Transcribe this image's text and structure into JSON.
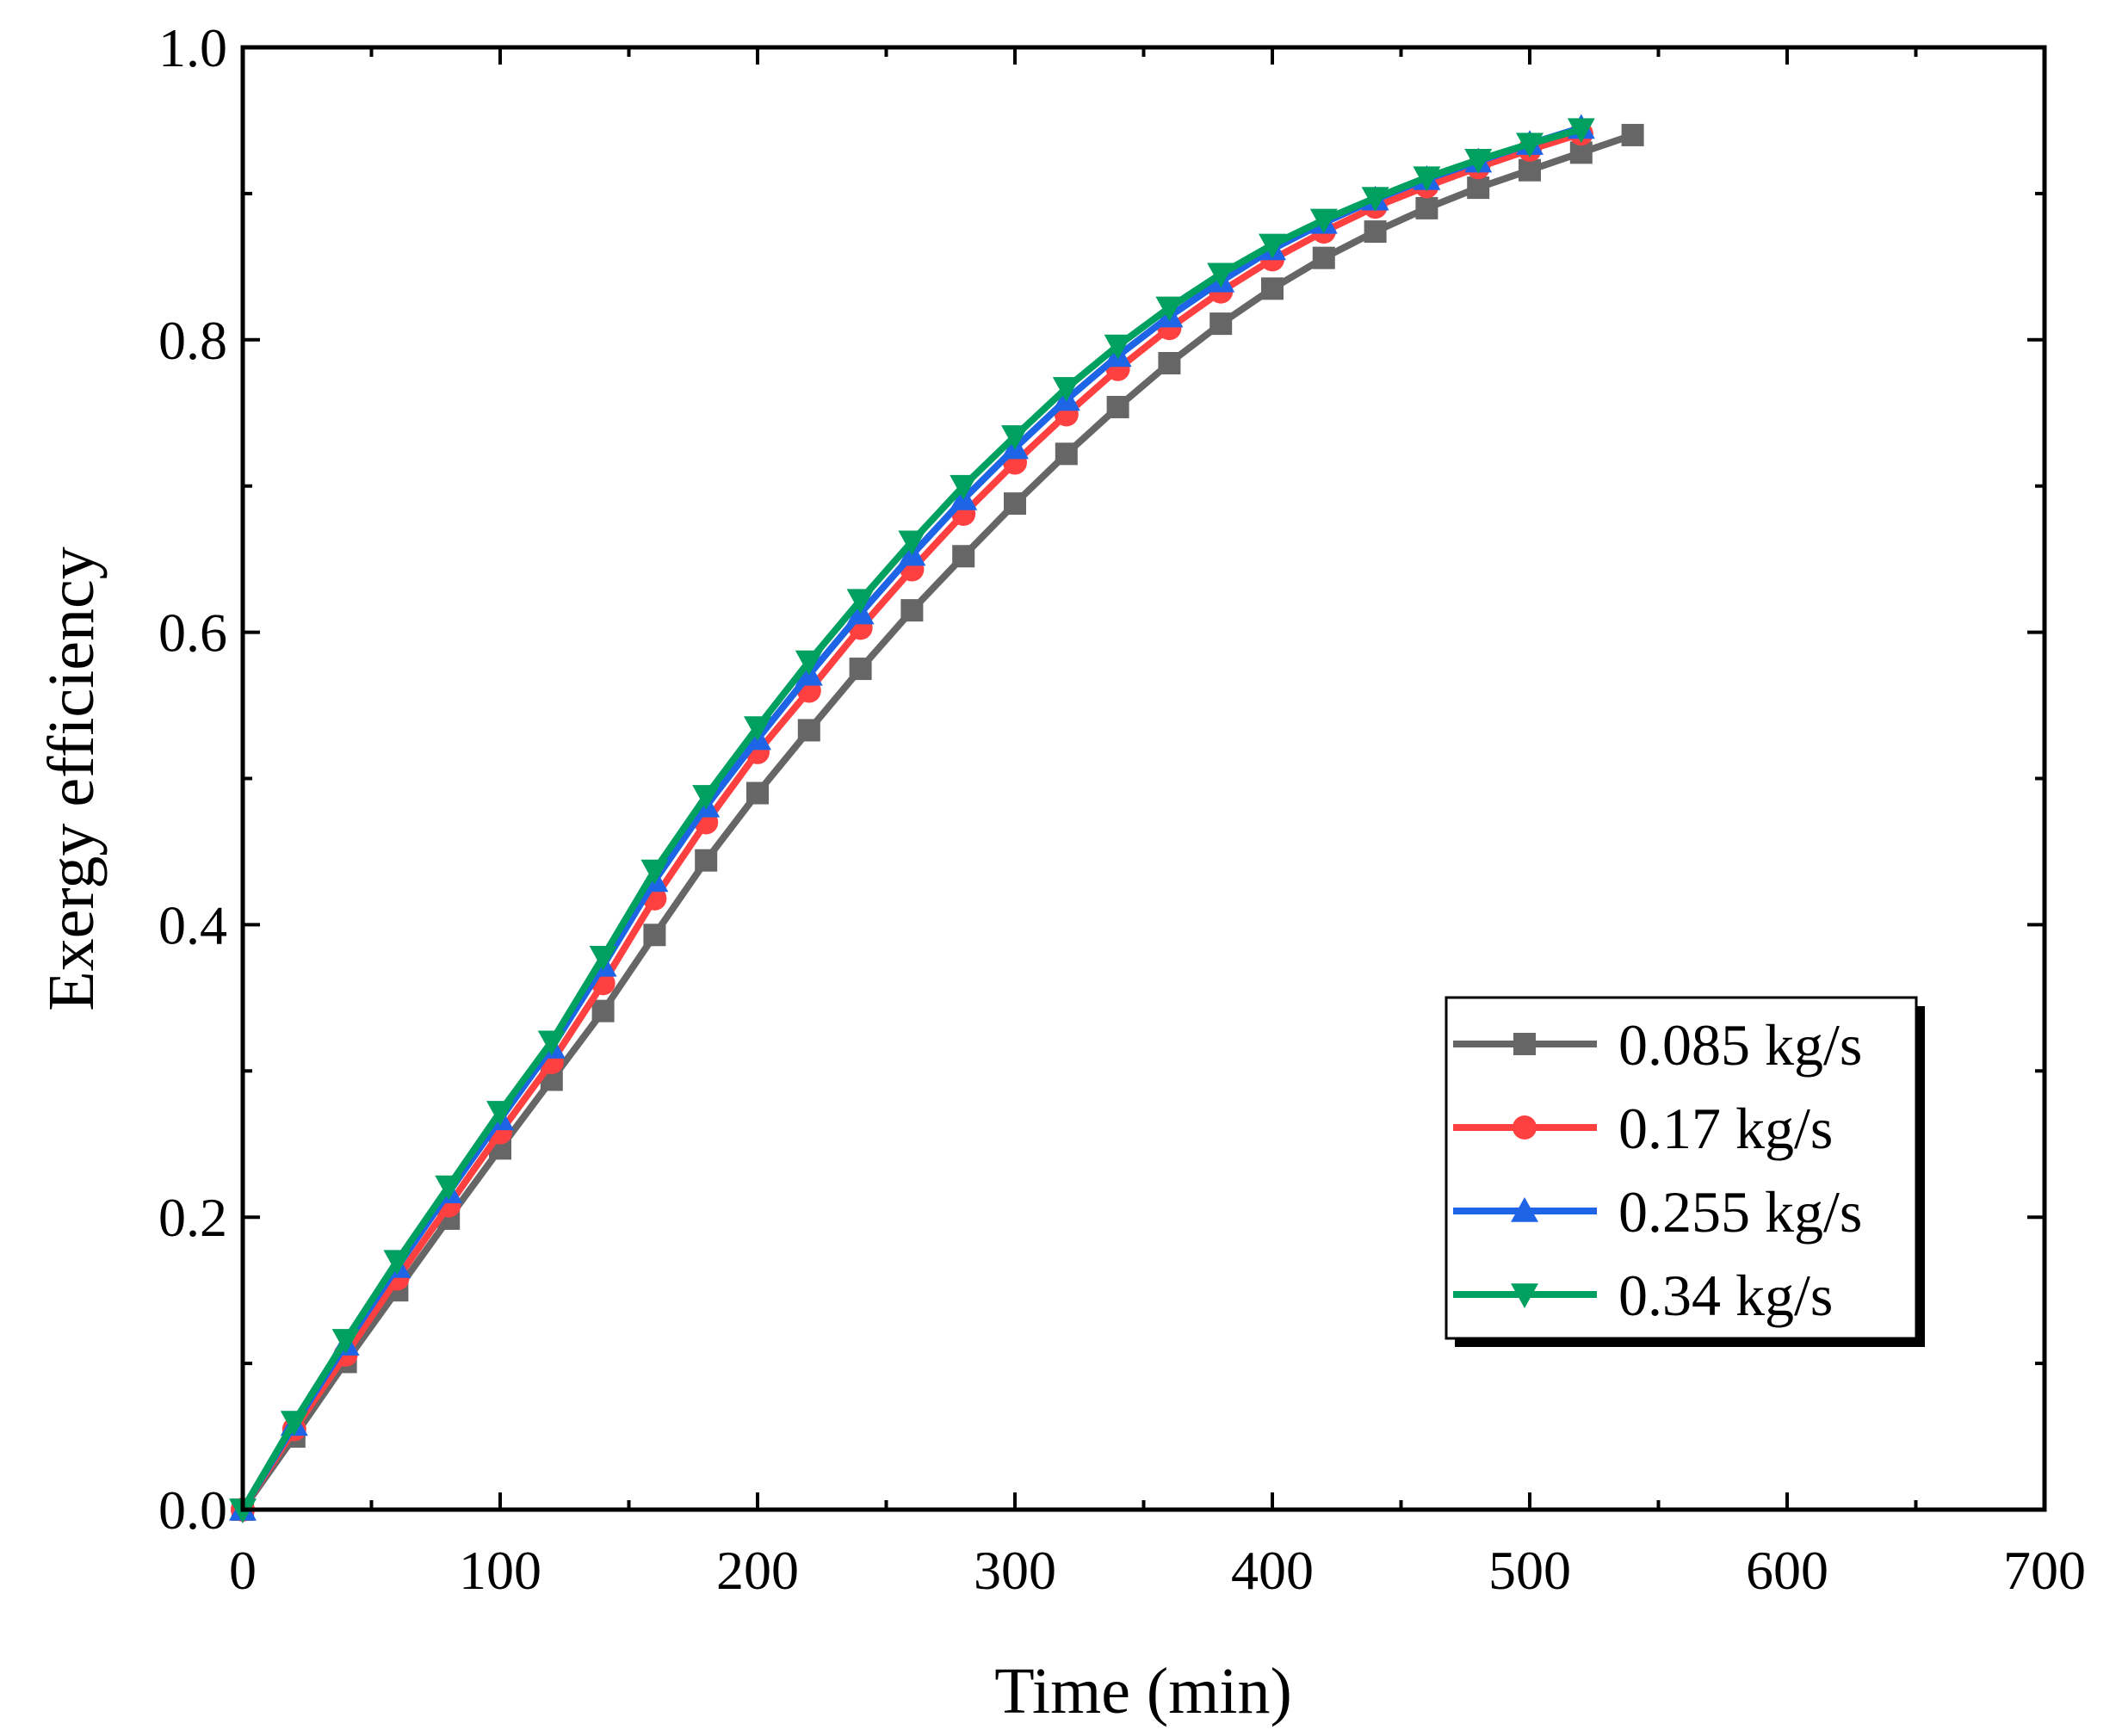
{
  "chart_data": {
    "type": "line",
    "title": "",
    "xlabel": "Time (min)",
    "ylabel": "Exergy efficiency",
    "xlim": [
      0,
      700
    ],
    "ylim": [
      0,
      1.0
    ],
    "xticks": [
      0,
      100,
      200,
      300,
      400,
      500,
      600,
      700
    ],
    "xtick_labels": [
      "0",
      "100",
      "200",
      "300",
      "400",
      "500",
      "600",
      "700"
    ],
    "yticks": [
      0,
      0.2,
      0.4,
      0.6,
      0.8,
      1.0
    ],
    "ytick_labels": [
      "0.0",
      "0.2",
      "0.4",
      "0.6",
      "0.8",
      "1.0"
    ],
    "grid": false,
    "legend_position": "bottom-right",
    "series": [
      {
        "name": "0.085 kg/s",
        "color": "#666666",
        "marker": "square",
        "x": [
          0,
          20,
          40,
          60,
          80,
          100,
          120,
          140,
          160,
          180,
          200,
          220,
          240,
          260,
          280,
          300,
          320,
          340,
          360,
          380,
          400,
          420,
          440,
          460,
          480,
          500,
          520,
          540
        ],
        "y": [
          0.0,
          0.05,
          0.101,
          0.15,
          0.199,
          0.247,
          0.294,
          0.341,
          0.393,
          0.444,
          0.49,
          0.533,
          0.575,
          0.615,
          0.652,
          0.688,
          0.722,
          0.754,
          0.784,
          0.811,
          0.835,
          0.856,
          0.874,
          0.89,
          0.904,
          0.916,
          0.928,
          0.94
        ]
      },
      {
        "name": "0.17 kg/s",
        "color": "#ff4040",
        "marker": "circle",
        "x": [
          0,
          20,
          40,
          60,
          80,
          100,
          120,
          140,
          160,
          180,
          200,
          220,
          240,
          260,
          280,
          300,
          320,
          340,
          360,
          380,
          400,
          420,
          440,
          460,
          480,
          500,
          520
        ],
        "y": [
          0.0,
          0.055,
          0.106,
          0.158,
          0.208,
          0.258,
          0.306,
          0.36,
          0.418,
          0.47,
          0.518,
          0.56,
          0.603,
          0.643,
          0.681,
          0.716,
          0.749,
          0.78,
          0.808,
          0.833,
          0.855,
          0.874,
          0.891,
          0.905,
          0.918,
          0.93,
          0.941
        ]
      },
      {
        "name": "0.255 kg/s",
        "color": "#1e64e6",
        "marker": "triangle-up",
        "x": [
          0,
          20,
          40,
          60,
          80,
          100,
          120,
          140,
          160,
          180,
          200,
          220,
          240,
          260,
          280,
          300,
          320,
          340,
          360,
          380,
          400,
          420,
          440,
          460,
          480,
          500,
          520
        ],
        "y": [
          0.0,
          0.058,
          0.113,
          0.166,
          0.217,
          0.267,
          0.316,
          0.372,
          0.43,
          0.481,
          0.527,
          0.571,
          0.613,
          0.653,
          0.691,
          0.726,
          0.759,
          0.789,
          0.816,
          0.84,
          0.862,
          0.88,
          0.896,
          0.91,
          0.922,
          0.934,
          0.945
        ]
      },
      {
        "name": "0.34 kg/s",
        "color": "#00a060",
        "marker": "triangle-down",
        "x": [
          0,
          20,
          40,
          60,
          80,
          100,
          120,
          140,
          160,
          180,
          200,
          220,
          240,
          260,
          280,
          300,
          320,
          340,
          360,
          380,
          400,
          420,
          440,
          460,
          480,
          500,
          520
        ],
        "y": [
          0.0,
          0.06,
          0.116,
          0.17,
          0.221,
          0.272,
          0.32,
          0.378,
          0.437,
          0.488,
          0.535,
          0.58,
          0.622,
          0.662,
          0.7,
          0.734,
          0.767,
          0.796,
          0.822,
          0.845,
          0.865,
          0.882,
          0.897,
          0.911,
          0.923,
          0.934,
          0.944
        ]
      }
    ]
  }
}
